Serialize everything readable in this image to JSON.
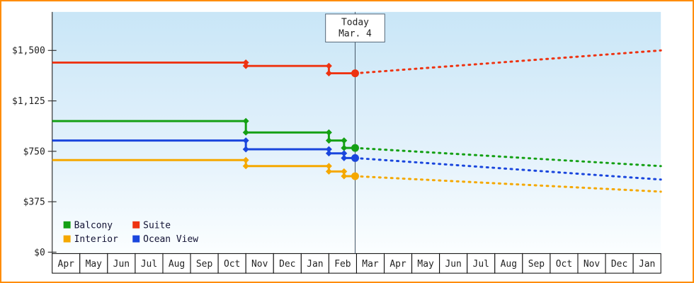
{
  "chart_data": {
    "type": "line",
    "y_axis": {
      "tick_labels": [
        "$0",
        "$375",
        "$750",
        "$1,125",
        "$1,500"
      ],
      "tick_values": [
        0,
        375,
        750,
        1125,
        1500
      ],
      "ylim": [
        0,
        1786
      ]
    },
    "x_axis": {
      "months": [
        "Apr",
        "May",
        "Jun",
        "Jul",
        "Aug",
        "Sep",
        "Oct",
        "Nov",
        "Dec",
        "Jan",
        "Feb",
        "Mar",
        "Apr",
        "May",
        "Jun",
        "Jul",
        "Aug",
        "Sep",
        "Oct",
        "Nov",
        "Dec",
        "Jan"
      ]
    },
    "today": {
      "title": "Today",
      "date": "Mar. 4",
      "x_position_months": 10.95
    },
    "series": [
      {
        "name": "Balcony",
        "color": "#14a014",
        "history_steps": [
          [
            0,
            975
          ],
          [
            7,
            890
          ],
          [
            10,
            830
          ],
          [
            10.55,
            775
          ]
        ],
        "forecast_end_value": 640
      },
      {
        "name": "Suite",
        "color": "#ee3311",
        "history_steps": [
          [
            0,
            1410
          ],
          [
            7,
            1385
          ],
          [
            10,
            1330
          ]
        ],
        "forecast_end_value": 1500
      },
      {
        "name": "Interior",
        "color": "#f5a800",
        "history_steps": [
          [
            0,
            685
          ],
          [
            7,
            640
          ],
          [
            10,
            600
          ],
          [
            10.55,
            565
          ]
        ],
        "forecast_end_value": 450
      },
      {
        "name": "Ocean View",
        "color": "#1a46dd",
        "history_steps": [
          [
            0,
            830
          ],
          [
            7,
            765
          ],
          [
            10,
            735
          ],
          [
            10.55,
            700
          ]
        ],
        "forecast_end_value": 540
      }
    ],
    "legend": {
      "rows": [
        [
          "Balcony",
          "Suite"
        ],
        [
          "Interior",
          "Ocean View"
        ]
      ]
    },
    "styles": {
      "frame_border": "#ff8c00",
      "plot_gradient_top": "#c9e6f7",
      "plot_gradient_mid": "#e2f1fb",
      "plot_gradient_bottom": "#fbfeff",
      "axis_color": "#333333",
      "text_color": "#222222",
      "today_line_color": "#445566",
      "legend_text_color": "#111133"
    }
  }
}
